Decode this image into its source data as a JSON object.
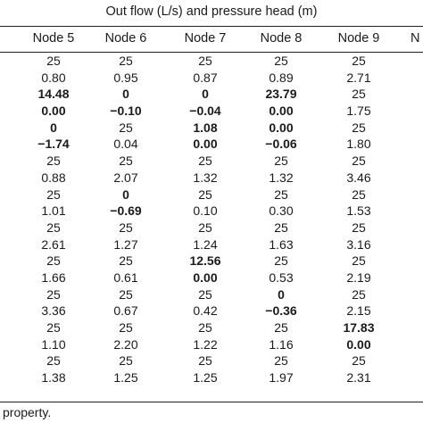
{
  "table": {
    "caption": "Out flow (L/s) and pressure head (m)",
    "headers": [
      "Node 5",
      "Node 6",
      "Node 7",
      "Node 8",
      "Node 9",
      "N"
    ],
    "rows": [
      [
        {
          "v": "25",
          "b": false
        },
        {
          "v": "25",
          "b": false
        },
        {
          "v": "25",
          "b": false
        },
        {
          "v": "25",
          "b": false
        },
        {
          "v": "25",
          "b": false
        }
      ],
      [
        {
          "v": "0.80",
          "b": false
        },
        {
          "v": "0.95",
          "b": false
        },
        {
          "v": "0.87",
          "b": false
        },
        {
          "v": "0.89",
          "b": false
        },
        {
          "v": "2.71",
          "b": false
        }
      ],
      [
        {
          "v": "14.48",
          "b": true
        },
        {
          "v": "0",
          "b": true
        },
        {
          "v": "0",
          "b": true
        },
        {
          "v": "23.79",
          "b": true
        },
        {
          "v": "25",
          "b": false
        }
      ],
      [
        {
          "v": "0.00",
          "b": true
        },
        {
          "v": "−0.10",
          "b": true
        },
        {
          "v": "−0.04",
          "b": true
        },
        {
          "v": "0.00",
          "b": true
        },
        {
          "v": "1.75",
          "b": false
        }
      ],
      [
        {
          "v": "0",
          "b": true
        },
        {
          "v": "25",
          "b": false
        },
        {
          "v": "1.08",
          "b": true
        },
        {
          "v": "0.00",
          "b": true
        },
        {
          "v": "25",
          "b": false
        }
      ],
      [
        {
          "v": "−1.74",
          "b": true
        },
        {
          "v": "0.04",
          "b": false
        },
        {
          "v": "0.00",
          "b": true
        },
        {
          "v": "−0.06",
          "b": true
        },
        {
          "v": "1.80",
          "b": false
        }
      ],
      [
        {
          "v": "25",
          "b": false
        },
        {
          "v": "25",
          "b": false
        },
        {
          "v": "25",
          "b": false
        },
        {
          "v": "25",
          "b": false
        },
        {
          "v": "25",
          "b": false
        }
      ],
      [
        {
          "v": "0.88",
          "b": false
        },
        {
          "v": "2.07",
          "b": false
        },
        {
          "v": "1.32",
          "b": false
        },
        {
          "v": "1.32",
          "b": false
        },
        {
          "v": "3.46",
          "b": false
        }
      ],
      [
        {
          "v": "25",
          "b": false
        },
        {
          "v": "0",
          "b": true
        },
        {
          "v": "25",
          "b": false
        },
        {
          "v": "25",
          "b": false
        },
        {
          "v": "25",
          "b": false
        }
      ],
      [
        {
          "v": "1.01",
          "b": false
        },
        {
          "v": "−0.69",
          "b": true
        },
        {
          "v": "0.10",
          "b": false
        },
        {
          "v": "0.30",
          "b": false
        },
        {
          "v": "1.53",
          "b": false
        }
      ],
      [
        {
          "v": "25",
          "b": false
        },
        {
          "v": "25",
          "b": false
        },
        {
          "v": "25",
          "b": false
        },
        {
          "v": "25",
          "b": false
        },
        {
          "v": "25",
          "b": false
        }
      ],
      [
        {
          "v": "2.61",
          "b": false
        },
        {
          "v": "1.27",
          "b": false
        },
        {
          "v": "1.24",
          "b": false
        },
        {
          "v": "1.63",
          "b": false
        },
        {
          "v": "3.16",
          "b": false
        }
      ],
      [
        {
          "v": "25",
          "b": false
        },
        {
          "v": "25",
          "b": false
        },
        {
          "v": "12.56",
          "b": true
        },
        {
          "v": "25",
          "b": false
        },
        {
          "v": "25",
          "b": false
        }
      ],
      [
        {
          "v": "1.66",
          "b": false
        },
        {
          "v": "0.61",
          "b": false
        },
        {
          "v": "0.00",
          "b": true
        },
        {
          "v": "0.53",
          "b": false
        },
        {
          "v": "2.19",
          "b": false
        }
      ],
      [
        {
          "v": "25",
          "b": false
        },
        {
          "v": "25",
          "b": false
        },
        {
          "v": "25",
          "b": false
        },
        {
          "v": "0",
          "b": true
        },
        {
          "v": "25",
          "b": false
        }
      ],
      [
        {
          "v": "3.36",
          "b": false
        },
        {
          "v": "0.67",
          "b": false
        },
        {
          "v": "0.42",
          "b": false
        },
        {
          "v": "−0.36",
          "b": true
        },
        {
          "v": "2.15",
          "b": false
        }
      ],
      [
        {
          "v": "25",
          "b": false
        },
        {
          "v": "25",
          "b": false
        },
        {
          "v": "25",
          "b": false
        },
        {
          "v": "25",
          "b": false
        },
        {
          "v": "17.83",
          "b": true
        }
      ],
      [
        {
          "v": "1.10",
          "b": false
        },
        {
          "v": "2.20",
          "b": false
        },
        {
          "v": "1.22",
          "b": false
        },
        {
          "v": "1.16",
          "b": false
        },
        {
          "v": "0.00",
          "b": true
        }
      ],
      [
        {
          "v": "25",
          "b": false
        },
        {
          "v": "25",
          "b": false
        },
        {
          "v": "25",
          "b": false
        },
        {
          "v": "25",
          "b": false
        },
        {
          "v": "25",
          "b": false
        }
      ],
      [
        {
          "v": "1.38",
          "b": false
        },
        {
          "v": "1.25",
          "b": false
        },
        {
          "v": "1.25",
          "b": false
        },
        {
          "v": "1.97",
          "b": false
        },
        {
          "v": "2.31",
          "b": false
        }
      ]
    ]
  },
  "footnote": "property."
}
